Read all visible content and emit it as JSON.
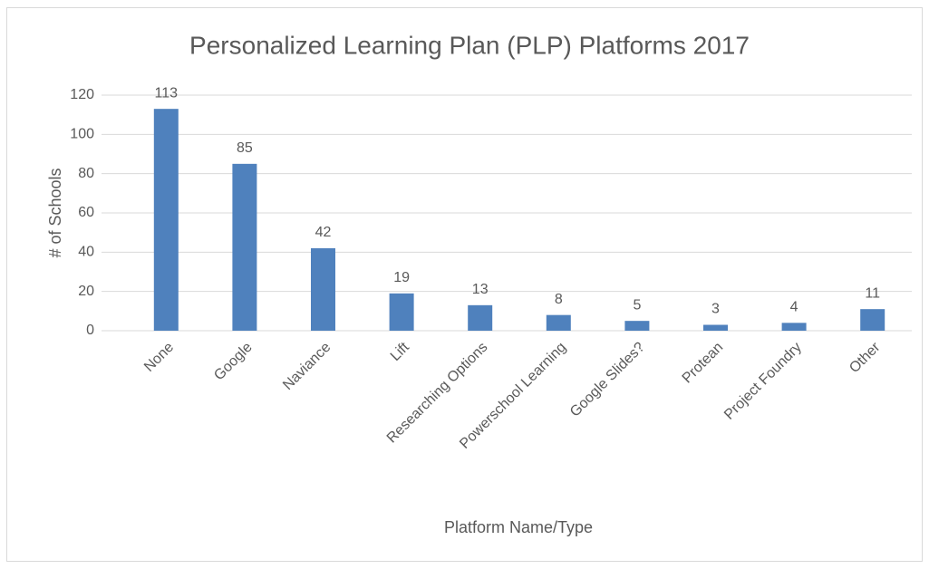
{
  "chart_data": {
    "type": "bar",
    "title": "Personalized Learning Plan (PLP) Platforms 2017",
    "x_label": "Platform Name/Type",
    "y_label": "# of Schools",
    "categories": [
      "None",
      "Google",
      "Naviance",
      "Lift",
      "Researching Options",
      "Powerschool Learning",
      "Google Slides?",
      "Protean",
      "Project Foundry",
      "Other"
    ],
    "values": [
      113,
      85,
      42,
      19,
      13,
      8,
      5,
      3,
      4,
      11
    ],
    "color": "#4f81bd",
    "ylim": [
      0,
      120
    ],
    "yticks": [
      0,
      20,
      40,
      60,
      80,
      100,
      120
    ],
    "grid": true
  }
}
